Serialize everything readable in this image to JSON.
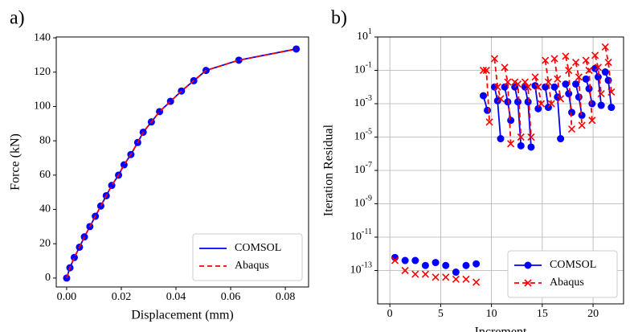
{
  "chart_data": [
    {
      "type": "line",
      "panel_label": "a)",
      "xlabel": "Displacement (mm)",
      "ylabel": "Force (kN)",
      "x": [
        0,
        0.0012,
        0.0028,
        0.0047,
        0.0065,
        0.0085,
        0.0105,
        0.0125,
        0.0145,
        0.0165,
        0.019,
        0.021,
        0.0235,
        0.026,
        0.028,
        0.031,
        0.034,
        0.038,
        0.042,
        0.0465,
        0.051,
        0.063,
        0.084
      ],
      "series": [
        {
          "name": "COMSOL",
          "color": "#0000ff",
          "linestyle": "solid",
          "marker": "o",
          "values": [
            0,
            6,
            12,
            18,
            24,
            30,
            36,
            42,
            48,
            54,
            60,
            66,
            72,
            79,
            85,
            91,
            97,
            103,
            109,
            115,
            121,
            127,
            133.5
          ]
        },
        {
          "name": "Abaqus",
          "color": "#ff0000",
          "linestyle": "dashed",
          "marker": "none",
          "values": [
            0,
            6,
            12,
            18,
            24,
            30,
            36,
            42,
            48,
            54,
            60,
            66,
            72,
            79,
            85,
            91,
            97,
            103,
            109,
            115,
            121,
            127,
            133.5
          ]
        }
      ],
      "xlim": [
        -0.0038,
        0.0885
      ],
      "xticks": [
        {
          "value": 0,
          "label": "0.00"
        },
        {
          "value": 0.02,
          "label": "0.02"
        },
        {
          "value": 0.04,
          "label": "0.04"
        },
        {
          "value": 0.06,
          "label": "0.06"
        },
        {
          "value": 0.08,
          "label": "0.08"
        }
      ],
      "ylim": [
        -5.2,
        140.5
      ],
      "yticks": [
        0,
        20,
        40,
        60,
        80,
        100,
        120,
        140
      ],
      "grid": false,
      "legend": "lower right"
    },
    {
      "type": "line",
      "panel_label": "b)",
      "xlabel": "Increment",
      "ylabel": "Iteration Residual",
      "yscale": "log",
      "series": [
        {
          "name": "COMSOL",
          "color": "#0000ff",
          "linestyle": "solid",
          "marker": "o",
          "x": [
            0.5,
            null,
            1.5,
            null,
            2.5,
            null,
            3.5,
            null,
            4.5,
            null,
            5.5,
            null,
            6.5,
            null,
            7.5,
            null,
            8.5,
            null,
            9.2,
            9.6,
            null,
            10.3,
            10.6,
            10.9,
            null,
            11.3,
            11.6,
            11.9,
            null,
            12.3,
            12.6,
            12.9,
            null,
            13.3,
            13.6,
            13.9,
            null,
            14.3,
            14.6,
            null,
            15.3,
            15.6,
            null,
            16.2,
            16.5,
            16.8,
            null,
            17.3,
            17.6,
            17.9,
            null,
            18.3,
            18.6,
            18.9,
            null,
            19.3,
            19.6,
            19.9,
            null,
            20.2,
            20.5,
            20.8,
            null,
            21.2,
            21.5,
            21.8
          ],
          "values": [
            6e-13,
            null,
            4e-13,
            null,
            4e-13,
            null,
            2e-13,
            null,
            3e-13,
            null,
            2e-13,
            null,
            8e-14,
            null,
            2e-13,
            null,
            2.5e-13,
            null,
            0.003,
            0.0004,
            null,
            0.01,
            0.0015,
            8e-06,
            null,
            0.01,
            0.0013,
            0.0001,
            null,
            0.01,
            0.0013,
            3e-06,
            null,
            0.01,
            0.0013,
            2.5e-06,
            null,
            0.012,
            0.0005,
            null,
            0.01,
            0.0006,
            null,
            0.01,
            0.0025,
            8e-06,
            null,
            0.015,
            0.004,
            0.0003,
            null,
            0.015,
            0.0025,
            0.0002,
            null,
            0.03,
            0.008,
            0.001,
            null,
            0.13,
            0.04,
            0.0008,
            null,
            0.08,
            0.025,
            0.0006
          ]
        },
        {
          "name": "Abaqus",
          "color": "#ff0000",
          "linestyle": "dashed",
          "marker": "x",
          "x": [
            0.5,
            null,
            1.5,
            null,
            2.5,
            null,
            3.5,
            null,
            4.5,
            null,
            5.5,
            null,
            6.5,
            null,
            7.5,
            null,
            8.5,
            null,
            9.2,
            9.5,
            9.8,
            null,
            10.3,
            10.6,
            10.9,
            null,
            11.3,
            11.6,
            11.9,
            null,
            12.3,
            12.6,
            12.9,
            null,
            13.3,
            13.6,
            13.9,
            null,
            14.3,
            14.6,
            14.9,
            null,
            15.3,
            15.6,
            15.9,
            null,
            16.2,
            16.5,
            16.8,
            null,
            17.3,
            17.6,
            17.9,
            null,
            18.3,
            18.6,
            18.9,
            null,
            19.3,
            19.6,
            19.9,
            null,
            20.2,
            20.5,
            20.8,
            null,
            21.2,
            21.5,
            21.8
          ],
          "values": [
            4e-13,
            null,
            1e-13,
            null,
            6e-14,
            null,
            6e-14,
            null,
            4e-14,
            null,
            4e-14,
            null,
            3e-14,
            null,
            3e-14,
            null,
            2e-14,
            null,
            0.1,
            0.1,
            8e-05,
            null,
            0.5,
            0.01,
            0.002,
            null,
            0.15,
            0.02,
            4e-06,
            null,
            0.02,
            0.015,
            1e-05,
            null,
            0.02,
            0.01,
            1e-05,
            null,
            0.04,
            0.01,
            0.001,
            null,
            0.4,
            0.02,
            0.001,
            null,
            0.5,
            0.03,
            0.002,
            null,
            0.7,
            0.1,
            3e-05,
            null,
            0.3,
            0.04,
            5e-05,
            null,
            0.4,
            0.1,
            0.0001,
            null,
            0.8,
            0.15,
            0.004,
            null,
            2.5,
            0.3,
            0.005
          ]
        }
      ],
      "xlim": [
        -1.2,
        23
      ],
      "xticks": [
        0,
        5,
        10,
        15,
        20
      ],
      "ylim": [
        1e-15,
        10
      ],
      "yticks": [
        {
          "value": 1e-13,
          "label": "10^-13"
        },
        {
          "value": 1e-11,
          "label": "10^-11"
        },
        {
          "value": 1e-09,
          "label": "10^-9"
        },
        {
          "value": 1e-07,
          "label": "10^-7"
        },
        {
          "value": 1e-05,
          "label": "10^-5"
        },
        {
          "value": 0.001,
          "label": "10^-3"
        },
        {
          "value": 0.1,
          "label": "10^-1"
        },
        {
          "value": 10,
          "label": "10^1"
        }
      ],
      "grid": true,
      "legend": "lower right"
    }
  ]
}
